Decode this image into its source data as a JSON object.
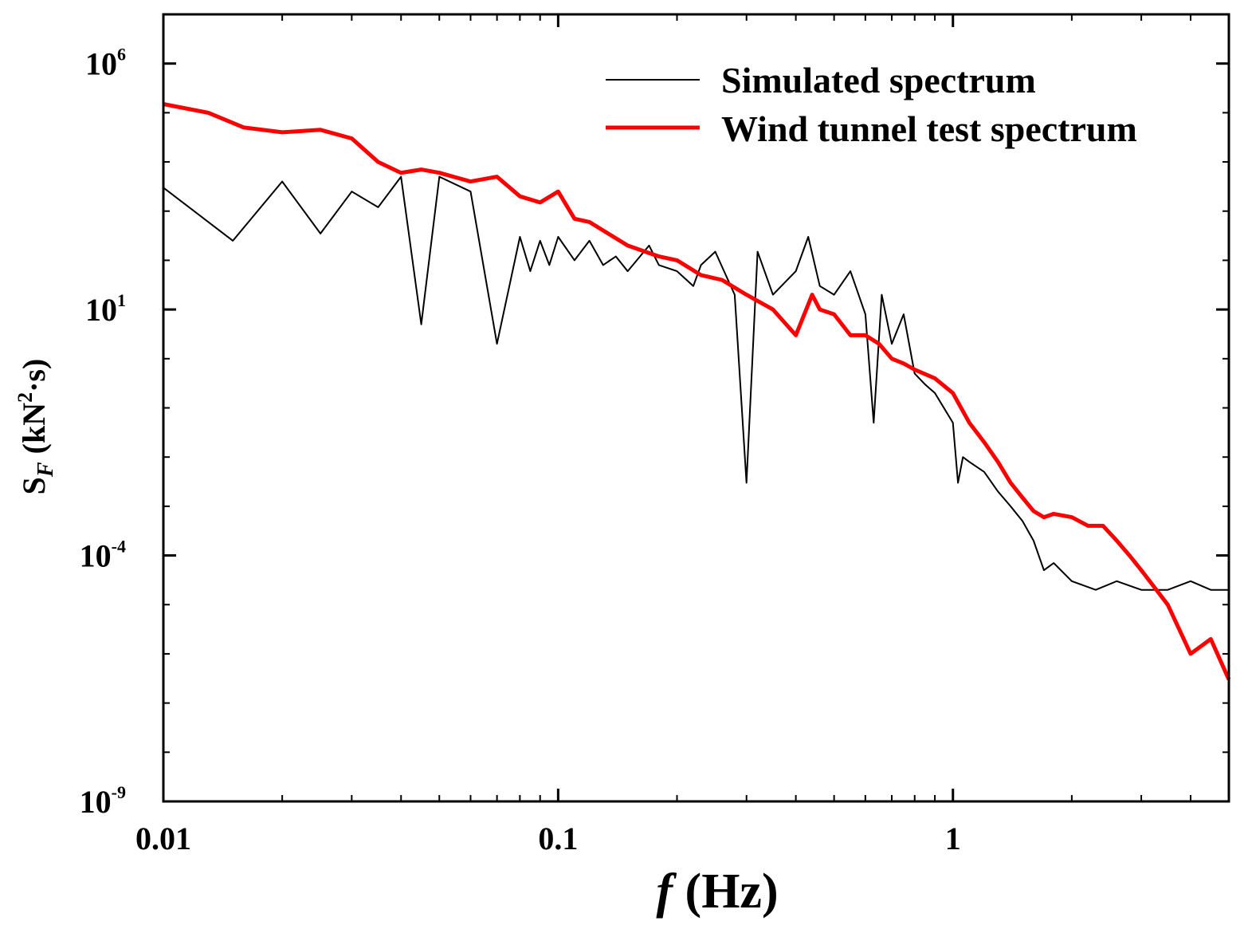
{
  "chart_data": {
    "type": "line",
    "title": "",
    "xlabel": {
      "italic": "f",
      "rest": " (Hz)"
    },
    "ylabel": {
      "base": "S",
      "sub": "F",
      "unit_pre": " (kN",
      "sup": "2",
      "unit_post": "·s)"
    },
    "xscale": "log",
    "yscale": "log",
    "xlim": [
      0.01,
      5
    ],
    "ylim": [
      1e-09,
      10000000.0
    ],
    "x_ticks": [
      {
        "value": 0.01,
        "label": "0.01"
      },
      {
        "value": 0.1,
        "label": "0.1"
      },
      {
        "value": 1,
        "label": "1"
      }
    ],
    "y_ticks": [
      {
        "value": 1e-09,
        "base": "10",
        "exp": "-9"
      },
      {
        "value": 0.0001,
        "base": "10",
        "exp": "-4"
      },
      {
        "value": 10,
        "base": "10",
        "exp": "1"
      },
      {
        "value": 1000000.0,
        "base": "10",
        "exp": "6"
      }
    ],
    "legend": {
      "position": "top-right"
    },
    "series": [
      {
        "name": "Simulated spectrum",
        "color": "#000000",
        "width": 2,
        "x": [
          0.01,
          0.015,
          0.02,
          0.025,
          0.03,
          0.035,
          0.04,
          0.045,
          0.05,
          0.06,
          0.07,
          0.08,
          0.085,
          0.09,
          0.095,
          0.1,
          0.11,
          0.12,
          0.13,
          0.14,
          0.15,
          0.17,
          0.18,
          0.2,
          0.22,
          0.23,
          0.25,
          0.28,
          0.3,
          0.32,
          0.35,
          0.4,
          0.43,
          0.46,
          0.5,
          0.55,
          0.6,
          0.63,
          0.66,
          0.7,
          0.75,
          0.8,
          0.85,
          0.9,
          1.0,
          1.03,
          1.06,
          1.1,
          1.2,
          1.3,
          1.4,
          1.5,
          1.6,
          1.7,
          1.8,
          2.0,
          2.3,
          2.6,
          3.0,
          3.5,
          4.0,
          4.5,
          5.0
        ],
        "values": [
          3000,
          250,
          4000,
          350,
          2500,
          1200,
          5000,
          5,
          5000,
          2500,
          2,
          300,
          60,
          250,
          80,
          300,
          100,
          250,
          80,
          120,
          60,
          200,
          80,
          60,
          30,
          80,
          150,
          20,
          0.003,
          150,
          20,
          60,
          300,
          30,
          20,
          60,
          8,
          0.05,
          20,
          2,
          8,
          0.5,
          0.3,
          0.2,
          0.05,
          0.003,
          0.01,
          0.008,
          0.005,
          0.002,
          0.001,
          0.0005,
          0.0002,
          5e-05,
          7e-05,
          3e-05,
          2e-05,
          3e-05,
          2e-05,
          2e-05,
          3e-05,
          2e-05,
          2e-05
        ]
      },
      {
        "name": "Wind tunnel test spectrum",
        "color": "#ff0000",
        "width": 5,
        "x": [
          0.01,
          0.013,
          0.016,
          0.02,
          0.025,
          0.03,
          0.035,
          0.04,
          0.045,
          0.05,
          0.06,
          0.07,
          0.08,
          0.09,
          0.1,
          0.11,
          0.12,
          0.15,
          0.18,
          0.2,
          0.23,
          0.26,
          0.3,
          0.35,
          0.4,
          0.44,
          0.46,
          0.5,
          0.55,
          0.6,
          0.65,
          0.7,
          0.75,
          0.8,
          0.9,
          1.0,
          1.1,
          1.2,
          1.3,
          1.4,
          1.5,
          1.6,
          1.7,
          1.8,
          2.0,
          2.2,
          2.4,
          2.6,
          2.8,
          3.0,
          3.5,
          4.0,
          4.5,
          5.0
        ],
        "values": [
          150000,
          100000,
          50000,
          40000,
          45000,
          30000,
          10000,
          6000,
          7000,
          6000,
          4000,
          5000,
          2000,
          1500,
          2500,
          700,
          600,
          200,
          120,
          100,
          50,
          40,
          20,
          10,
          3,
          20,
          10,
          8,
          3,
          3,
          2,
          1,
          0.8,
          0.6,
          0.4,
          0.2,
          0.05,
          0.02,
          0.008,
          0.003,
          0.0015,
          0.0008,
          0.0006,
          0.0007,
          0.0006,
          0.0004,
          0.0004,
          0.0002,
          0.0001,
          5e-05,
          1e-05,
          1e-06,
          2e-06,
          3e-07
        ]
      }
    ]
  }
}
